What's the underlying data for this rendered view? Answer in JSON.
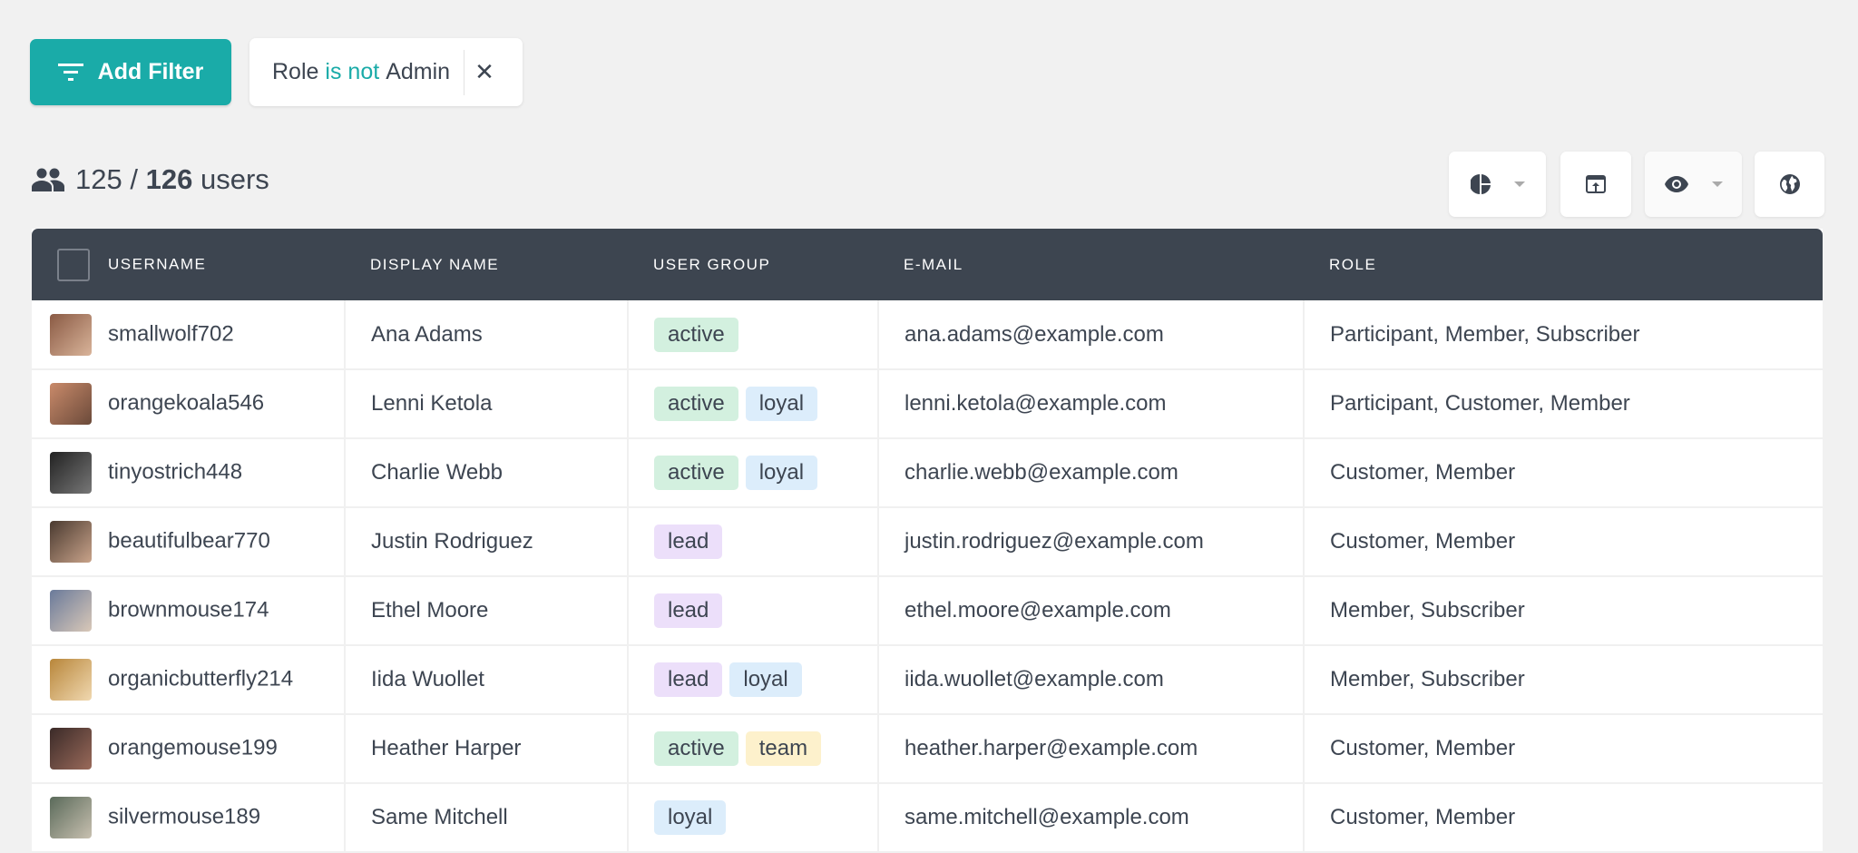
{
  "toolbar": {
    "add_filter_label": "Add Filter",
    "filter": {
      "field": "Role",
      "operator": "is not",
      "value": "Admin"
    }
  },
  "summary": {
    "shown": "125",
    "separator": "/",
    "total": "126",
    "unit": "users"
  },
  "actions": [
    {
      "icon": "pie-chart-icon",
      "dropdown": true
    },
    {
      "icon": "export-icon",
      "dropdown": false
    },
    {
      "icon": "eye-icon",
      "dropdown": true
    },
    {
      "icon": "globe-icon",
      "dropdown": false
    }
  ],
  "colors": {
    "accent": "#1aaba8",
    "header": "#3d4550",
    "active": "#d3f0df",
    "loyal": "#dcedfb",
    "lead": "#ecdffa",
    "team": "#fdf1cc"
  },
  "table": {
    "columns": [
      "USERNAME",
      "DISPLAY NAME",
      "USER GROUP",
      "E-MAIL",
      "ROLE"
    ],
    "rows": [
      {
        "username": "smallwolf702",
        "display": "Ana Adams",
        "groups": [
          "active"
        ],
        "email": "ana.adams@example.com",
        "role": "Participant, Member, Subscriber"
      },
      {
        "username": "orangekoala546",
        "display": "Lenni Ketola",
        "groups": [
          "active",
          "loyal"
        ],
        "email": "lenni.ketola@example.com",
        "role": "Participant, Customer, Member"
      },
      {
        "username": "tinyostrich448",
        "display": "Charlie Webb",
        "groups": [
          "active",
          "loyal"
        ],
        "email": "charlie.webb@example.com",
        "role": "Customer, Member"
      },
      {
        "username": "beautifulbear770",
        "display": "Justin Rodriguez",
        "groups": [
          "lead"
        ],
        "email": "justin.rodriguez@example.com",
        "role": "Customer, Member"
      },
      {
        "username": "brownmouse174",
        "display": "Ethel Moore",
        "groups": [
          "lead"
        ],
        "email": "ethel.moore@example.com",
        "role": "Member, Subscriber"
      },
      {
        "username": "organicbutterfly214",
        "display": "Iida Wuollet",
        "groups": [
          "lead",
          "loyal"
        ],
        "email": "iida.wuollet@example.com",
        "role": "Member, Subscriber"
      },
      {
        "username": "orangemouse199",
        "display": "Heather Harper",
        "groups": [
          "active",
          "team"
        ],
        "email": "heather.harper@example.com",
        "role": "Customer, Member"
      },
      {
        "username": "silvermouse189",
        "display": "Same Mitchell",
        "groups": [
          "loyal"
        ],
        "email": "same.mitchell@example.com",
        "role": "Customer, Member"
      }
    ]
  }
}
